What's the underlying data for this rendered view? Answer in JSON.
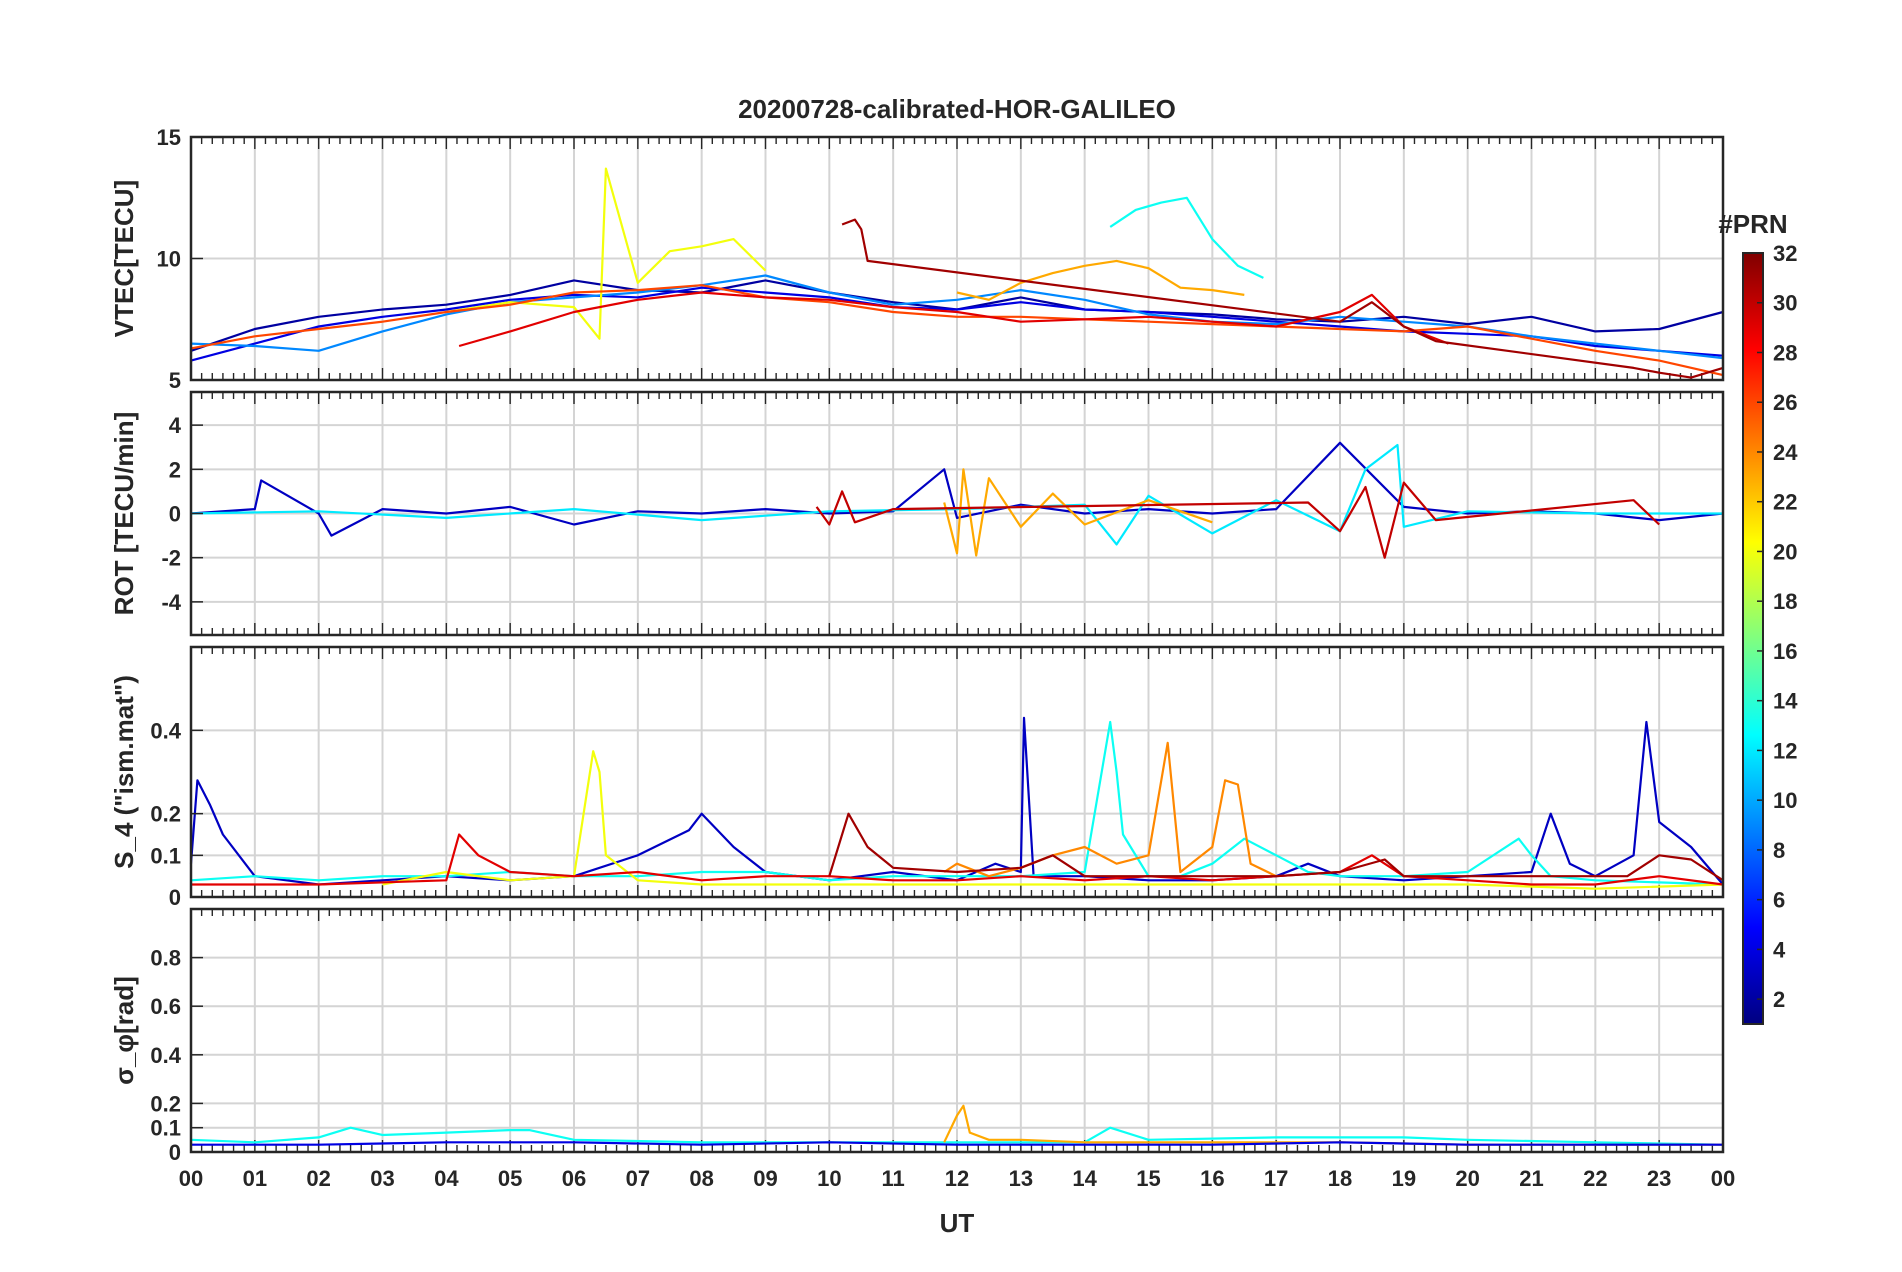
{
  "figure": {
    "title": "20200728-calibrated-HOR-GALILEO",
    "xlabel": "UT"
  },
  "colorbar": {
    "label": "#PRN",
    "range": [
      1,
      32
    ],
    "ticks": [
      2,
      4,
      6,
      8,
      10,
      12,
      14,
      16,
      18,
      20,
      22,
      24,
      26,
      28,
      30,
      32
    ],
    "colormap": "jet",
    "stops": [
      "#000080",
      "#0000ff",
      "#00ffff",
      "#ffff00",
      "#ff0000",
      "#800000"
    ]
  },
  "chart_data": [
    {
      "type": "line",
      "panel": "vtec",
      "ylabel": "VTEC[TECU]",
      "ylim": [
        5,
        15
      ],
      "yticks": [
        5,
        10,
        15
      ],
      "xlim": [
        0,
        24
      ],
      "xticklabels": [
        "00",
        "01",
        "02",
        "03",
        "04",
        "05",
        "06",
        "07",
        "08",
        "09",
        "10",
        "11",
        "12",
        "13",
        "14",
        "15",
        "16",
        "17",
        "18",
        "19",
        "20",
        "21",
        "22",
        "23",
        "00"
      ],
      "grid": true,
      "series": [
        {
          "prn": 2,
          "x": [
            0,
            1,
            2,
            3,
            4,
            5,
            6,
            7,
            8,
            9,
            10,
            11,
            12,
            13,
            14,
            15,
            16,
            17,
            18,
            19,
            20,
            21,
            22,
            23,
            24
          ],
          "y": [
            6.2,
            7.1,
            7.6,
            7.9,
            8.1,
            8.5,
            9.1,
            8.7,
            8.6,
            9.1,
            8.6,
            8.2,
            7.9,
            8.4,
            7.9,
            7.8,
            7.7,
            7.5,
            7.4,
            7.6,
            7.3,
            7.6,
            7.0,
            7.1,
            7.8
          ]
        },
        {
          "prn": 4,
          "x": [
            0,
            1,
            2,
            3,
            4,
            5,
            6,
            7,
            8,
            9,
            10,
            11,
            12,
            13,
            14,
            15,
            16,
            17,
            18,
            19,
            20,
            21,
            22,
            23,
            24
          ],
          "y": [
            5.8,
            6.5,
            7.2,
            7.6,
            7.9,
            8.3,
            8.5,
            8.4,
            8.8,
            8.6,
            8.4,
            8.0,
            7.9,
            8.2,
            7.9,
            7.8,
            7.6,
            7.4,
            7.2,
            7.0,
            6.9,
            6.8,
            6.4,
            6.2,
            6.0
          ]
        },
        {
          "prn": 9,
          "x": [
            0,
            1,
            2,
            3,
            4,
            5,
            6,
            7,
            8,
            9,
            10,
            11,
            12,
            13,
            14,
            15,
            16,
            17,
            18,
            19,
            20,
            21,
            22,
            23,
            24
          ],
          "y": [
            6.5,
            6.4,
            6.2,
            7.0,
            7.7,
            8.2,
            8.4,
            8.6,
            8.9,
            9.3,
            8.6,
            8.1,
            8.3,
            8.7,
            8.3,
            7.7,
            7.4,
            7.3,
            7.6,
            7.4,
            7.2,
            6.8,
            6.5,
            6.2,
            5.9
          ]
        },
        {
          "prn": 13,
          "x": [
            14.4,
            14.8,
            15.2,
            15.6,
            16.0,
            16.4,
            16.8
          ],
          "y": [
            11.3,
            12.0,
            12.3,
            12.5,
            10.8,
            9.7,
            9.2
          ]
        },
        {
          "prn": 20,
          "x": [
            4.0,
            5.0,
            6.0,
            6.4,
            6.5,
            7.0,
            7.5,
            8.0,
            8.5,
            9.0
          ],
          "y": [
            7.8,
            8.2,
            8.0,
            6.7,
            13.7,
            9.0,
            10.3,
            10.5,
            10.8,
            9.5
          ]
        },
        {
          "prn": 23,
          "x": [
            12.0,
            12.5,
            13.0,
            13.5,
            14.0,
            14.5,
            15.0,
            15.5,
            16.0,
            16.5
          ],
          "y": [
            8.6,
            8.3,
            9.0,
            9.4,
            9.7,
            9.9,
            9.6,
            8.8,
            8.7,
            8.5
          ]
        },
        {
          "prn": 26,
          "x": [
            0,
            1,
            2,
            3,
            4,
            5,
            6,
            7,
            8,
            9,
            10,
            11,
            12,
            13,
            14,
            15,
            16,
            17,
            18,
            19,
            20,
            21,
            22,
            23,
            24
          ],
          "y": [
            6.3,
            6.8,
            7.1,
            7.4,
            7.8,
            8.1,
            8.6,
            8.7,
            8.9,
            8.4,
            8.2,
            7.8,
            7.6,
            7.6,
            7.5,
            7.4,
            7.3,
            7.2,
            7.1,
            7.0,
            7.2,
            6.7,
            6.2,
            5.8,
            5.2
          ]
        },
        {
          "prn": 29,
          "x": [
            4.2,
            5.0,
            6.0,
            7.0,
            8.0,
            9.0,
            10.0,
            11.0,
            12.0,
            13.0,
            14.0,
            15.0,
            16.0,
            17.0,
            18.0,
            18.5,
            19.0,
            19.7
          ],
          "y": [
            6.4,
            7.0,
            7.8,
            8.3,
            8.6,
            8.4,
            8.3,
            8.0,
            7.8,
            7.4,
            7.5,
            7.6,
            7.4,
            7.2,
            7.8,
            8.5,
            7.2,
            6.5
          ]
        },
        {
          "prn": 31,
          "x": [
            10.2,
            10.4,
            10.5,
            10.6,
            18.0,
            18.5,
            19.0,
            19.5,
            22.6,
            23.0,
            23.5,
            24.0
          ],
          "y": [
            11.4,
            11.6,
            11.2,
            9.9,
            7.4,
            8.2,
            7.2,
            6.6,
            5.5,
            5.3,
            5.1,
            5.5
          ]
        }
      ]
    },
    {
      "type": "line",
      "panel": "rot",
      "ylabel": "ROT [TECU/min]",
      "ylim": [
        -5.5,
        5.5
      ],
      "yticks": [
        -4,
        -2,
        0,
        2,
        4
      ],
      "xlim": [
        0,
        24
      ],
      "grid": true,
      "series": [
        {
          "prn": 3,
          "x": [
            0,
            1.0,
            1.1,
            2.0,
            2.2,
            3,
            4,
            5,
            6,
            7,
            8,
            9,
            10,
            11,
            11.8,
            12,
            13,
            14,
            15,
            16,
            17,
            18,
            19,
            20,
            21,
            22,
            23,
            24
          ],
          "y": [
            0,
            0.2,
            1.5,
            0,
            -1.0,
            0.2,
            0,
            0.3,
            -0.5,
            0.1,
            0,
            0.2,
            0,
            0.1,
            2.0,
            -0.2,
            0.4,
            0,
            0.2,
            0,
            0.2,
            3.2,
            0.3,
            0,
            0.1,
            0,
            -0.3,
            0
          ]
        },
        {
          "prn": 12,
          "x": [
            0,
            2,
            4,
            6,
            8,
            10,
            12,
            14,
            14.5,
            15,
            16,
            17,
            18,
            18.4,
            18.9,
            19,
            20,
            22,
            24
          ],
          "y": [
            0,
            0.1,
            -0.2,
            0.2,
            -0.3,
            0.1,
            0.2,
            0.4,
            -1.4,
            0.8,
            -0.9,
            0.6,
            -0.8,
            2.0,
            3.1,
            -0.6,
            0.1,
            0,
            0
          ]
        },
        {
          "prn": 23,
          "x": [
            11.8,
            12.0,
            12.1,
            12.3,
            12.5,
            13,
            13.5,
            14,
            15,
            16
          ],
          "y": [
            0.5,
            -1.8,
            2.0,
            -1.9,
            1.6,
            -0.6,
            0.9,
            -0.5,
            0.6,
            -0.4
          ]
        },
        {
          "prn": 30,
          "x": [
            9.8,
            10.0,
            10.2,
            10.4,
            11,
            17.5,
            18.0,
            18.4,
            18.7,
            19.0,
            19.5,
            22.6,
            23.0
          ],
          "y": [
            0.3,
            -0.5,
            1.0,
            -0.4,
            0.2,
            0.5,
            -0.8,
            1.2,
            -2.0,
            1.4,
            -0.3,
            0.6,
            -0.5
          ]
        }
      ]
    },
    {
      "type": "line",
      "panel": "s4",
      "ylabel": "S_4 (\"ism.mat\")",
      "ylim": [
        0,
        0.6
      ],
      "yticks": [
        0,
        0.1,
        0.2,
        0.4
      ],
      "xlim": [
        0,
        24
      ],
      "grid": true,
      "series": [
        {
          "prn": 3,
          "x": [
            0,
            0.1,
            0.3,
            0.5,
            1,
            2,
            3,
            4,
            5,
            6,
            7,
            7.8,
            8,
            8.5,
            9,
            10,
            11,
            12,
            12.6,
            13,
            13.05,
            13.2,
            14,
            15,
            16,
            17,
            17.5,
            18,
            19,
            20,
            21,
            21.3,
            21.6,
            22,
            22.6,
            22.8,
            23,
            23.5,
            24
          ],
          "y": [
            0.08,
            0.28,
            0.22,
            0.15,
            0.05,
            0.03,
            0.04,
            0.05,
            0.04,
            0.05,
            0.1,
            0.16,
            0.2,
            0.12,
            0.06,
            0.04,
            0.06,
            0.04,
            0.08,
            0.06,
            0.43,
            0.05,
            0.05,
            0.04,
            0.04,
            0.05,
            0.08,
            0.05,
            0.04,
            0.05,
            0.06,
            0.2,
            0.08,
            0.05,
            0.1,
            0.42,
            0.18,
            0.12,
            0.03
          ]
        },
        {
          "prn": 13,
          "x": [
            0,
            1,
            2,
            3,
            4,
            5,
            6,
            7,
            8,
            9,
            10,
            11,
            12,
            13,
            14,
            14.4,
            14.5,
            14.6,
            15,
            15.5,
            16,
            16.5,
            17,
            17.5,
            18,
            19,
            20,
            20.8,
            21,
            21.3,
            22,
            24
          ],
          "y": [
            0.04,
            0.05,
            0.04,
            0.05,
            0.05,
            0.06,
            0.05,
            0.05,
            0.06,
            0.06,
            0.04,
            0.05,
            0.05,
            0.05,
            0.06,
            0.42,
            0.3,
            0.15,
            0.05,
            0.05,
            0.08,
            0.14,
            0.1,
            0.06,
            0.05,
            0.05,
            0.06,
            0.14,
            0.1,
            0.05,
            0.04,
            0.03
          ]
        },
        {
          "prn": 20,
          "x": [
            3,
            4,
            5,
            6,
            6.3,
            6.4,
            6.5,
            7,
            8,
            20,
            22,
            24
          ],
          "y": [
            0.03,
            0.06,
            0.04,
            0.05,
            0.35,
            0.3,
            0.1,
            0.04,
            0.03,
            0.03,
            0.02,
            0.03
          ]
        },
        {
          "prn": 24,
          "x": [
            11.8,
            12,
            12.5,
            13,
            13.5,
            14,
            14.5,
            15,
            15.3,
            15.5,
            16,
            16.2,
            16.4,
            16.6,
            17
          ],
          "y": [
            0.06,
            0.08,
            0.05,
            0.07,
            0.1,
            0.12,
            0.08,
            0.1,
            0.37,
            0.06,
            0.12,
            0.28,
            0.27,
            0.08,
            0.05
          ]
        },
        {
          "prn": 29,
          "x": [
            0,
            2,
            4,
            4.2,
            4.5,
            5,
            6,
            7,
            8,
            9,
            10,
            11,
            12,
            13,
            14,
            15,
            16,
            17,
            18,
            18.5,
            19,
            20,
            21,
            22,
            23,
            24
          ],
          "y": [
            0.03,
            0.03,
            0.04,
            0.15,
            0.1,
            0.06,
            0.05,
            0.06,
            0.04,
            0.05,
            0.05,
            0.04,
            0.04,
            0.05,
            0.04,
            0.05,
            0.04,
            0.05,
            0.06,
            0.1,
            0.05,
            0.04,
            0.03,
            0.03,
            0.05,
            0.03
          ]
        },
        {
          "prn": 31,
          "x": [
            10,
            10.3,
            10.6,
            11,
            12,
            13,
            13.5,
            14,
            17,
            18,
            18.7,
            19,
            22.5,
            23,
            23.5,
            24
          ],
          "y": [
            0.05,
            0.2,
            0.12,
            0.07,
            0.06,
            0.07,
            0.1,
            0.05,
            0.05,
            0.06,
            0.09,
            0.05,
            0.05,
            0.1,
            0.09,
            0.04
          ]
        }
      ]
    },
    {
      "type": "line",
      "panel": "sigma_phi",
      "ylabel": "σ_φ[rad]",
      "ylim": [
        0,
        1
      ],
      "yticks": [
        0,
        0.1,
        0.2,
        0.4,
        0.6,
        0.8
      ],
      "xlim": [
        0,
        24
      ],
      "grid": true,
      "series": [
        {
          "prn": 13,
          "x": [
            0,
            1,
            2,
            2.5,
            3,
            4,
            5,
            5.3,
            6,
            8,
            10,
            12,
            14,
            14.4,
            15,
            17,
            18,
            19,
            20,
            22,
            24
          ],
          "y": [
            0.05,
            0.04,
            0.06,
            0.1,
            0.07,
            0.08,
            0.09,
            0.09,
            0.05,
            0.04,
            0.04,
            0.04,
            0.04,
            0.1,
            0.05,
            0.06,
            0.06,
            0.06,
            0.05,
            0.04,
            0.03
          ]
        },
        {
          "prn": 23,
          "x": [
            11.8,
            12.0,
            12.1,
            12.2,
            12.5,
            13,
            14,
            16,
            18,
            20,
            22,
            24
          ],
          "y": [
            0.04,
            0.15,
            0.19,
            0.08,
            0.05,
            0.05,
            0.04,
            0.04,
            0.04,
            0.03,
            0.03,
            0.03
          ]
        },
        {
          "prn": 4,
          "x": [
            0,
            2,
            4,
            6,
            8,
            10,
            12,
            14,
            16,
            18,
            20,
            22,
            24
          ],
          "y": [
            0.03,
            0.03,
            0.04,
            0.04,
            0.03,
            0.04,
            0.03,
            0.03,
            0.03,
            0.04,
            0.03,
            0.03,
            0.03
          ]
        }
      ]
    }
  ]
}
